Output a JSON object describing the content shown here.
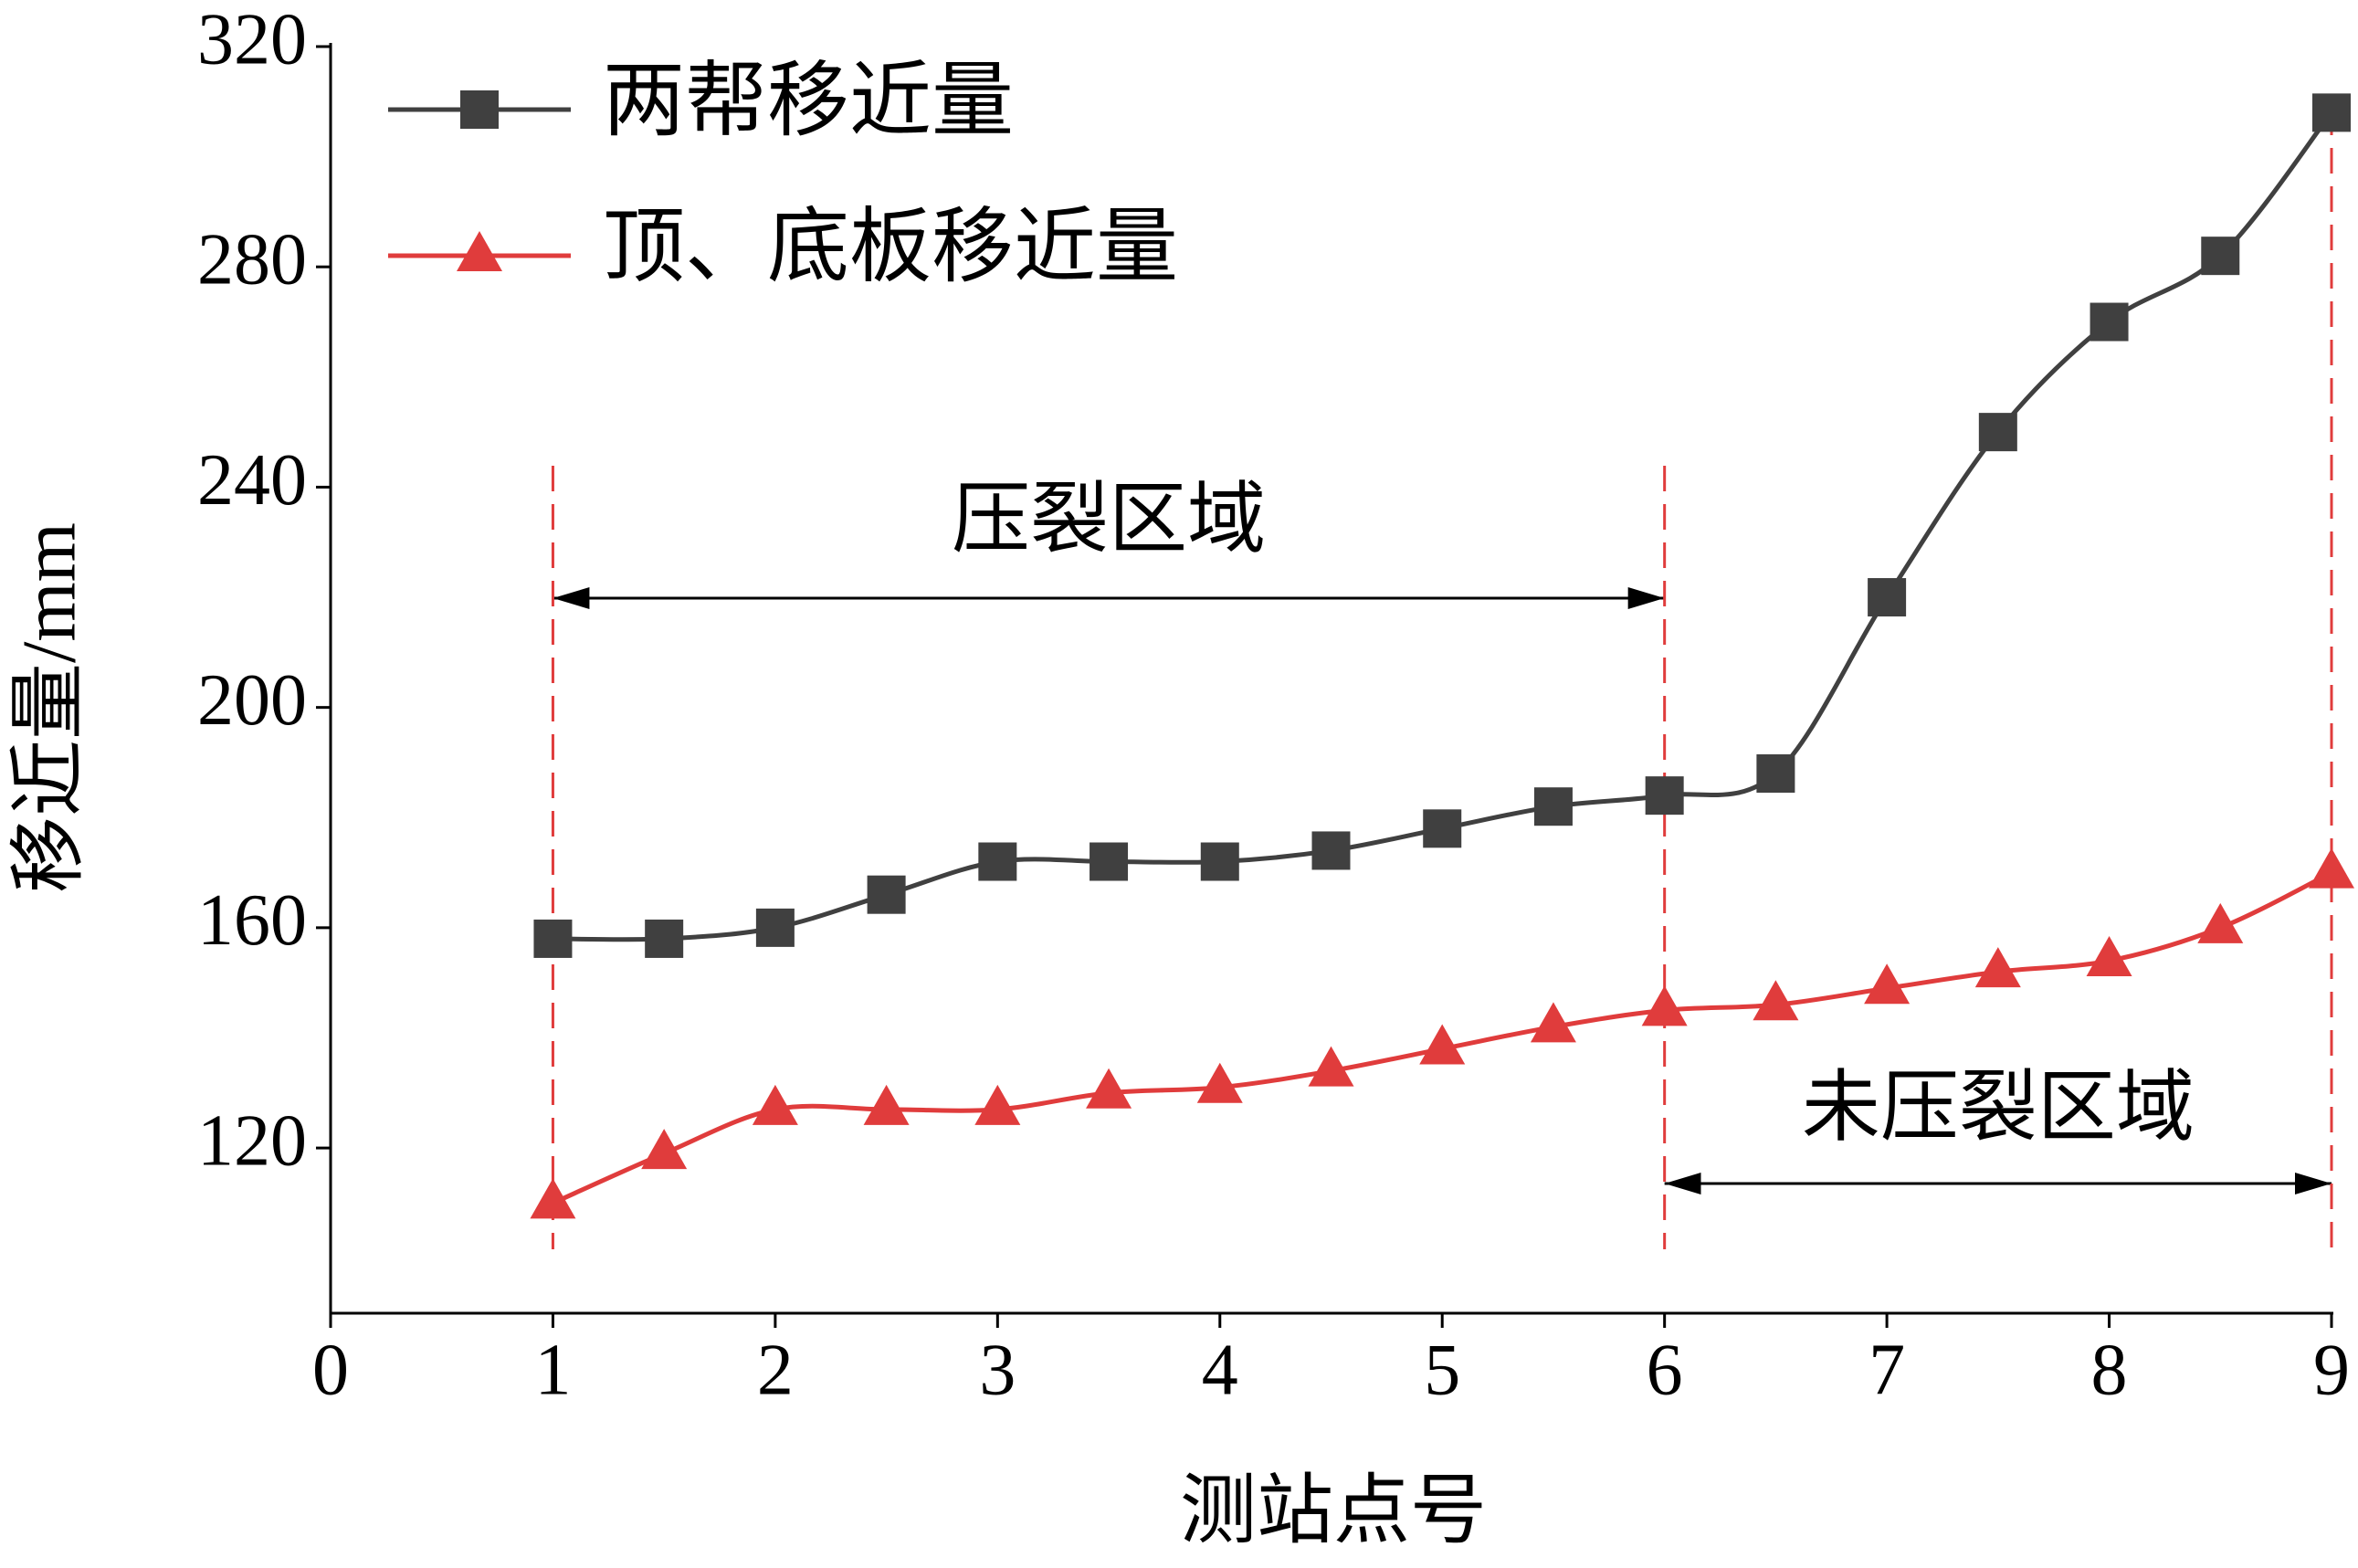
{
  "chart_data": {
    "type": "line",
    "xlabel": "测站点号",
    "ylabel": "移近量/mm",
    "x": [
      1,
      1.5,
      2,
      2.5,
      3,
      3.5,
      4,
      4.5,
      5,
      5.5,
      6,
      6.5,
      7,
      7.5,
      8,
      8.5,
      9
    ],
    "series": [
      {
        "name": "两帮移近量",
        "color": "#404040",
        "marker": "square",
        "values": [
          158,
          158,
          160,
          166,
          172,
          172,
          172,
          174,
          178,
          182,
          184,
          188,
          220,
          250,
          270,
          282,
          308
        ]
      },
      {
        "name": "顶、底板移近量",
        "color": "#e03c3c",
        "marker": "triangle",
        "values": [
          110,
          119,
          127,
          127,
          127,
          130,
          131,
          134,
          138,
          142,
          145,
          146,
          149,
          152,
          154,
          160,
          170
        ]
      }
    ],
    "xlim": [
      0,
      9
    ],
    "xticks": [
      0,
      1,
      2,
      3,
      4,
      5,
      6,
      7,
      8,
      9
    ],
    "ylim": [
      90,
      320
    ],
    "yticks": [
      120,
      160,
      200,
      240,
      280,
      320
    ],
    "legend": "upper-left",
    "regions": [
      {
        "label": "压裂区域",
        "range": [
          1,
          6
        ]
      },
      {
        "label": "未压裂区域",
        "range": [
          6,
          9
        ]
      }
    ]
  }
}
